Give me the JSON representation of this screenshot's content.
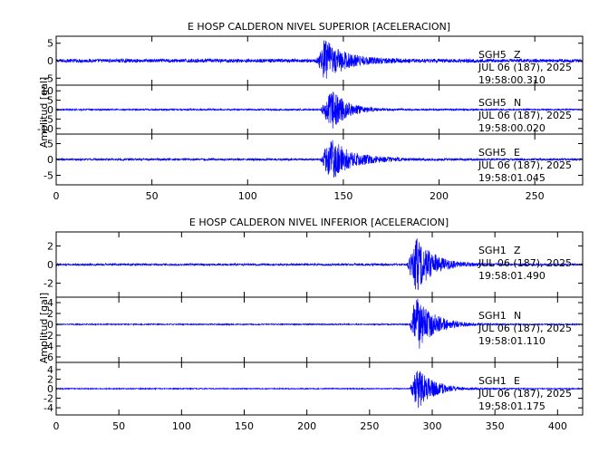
{
  "chart_data": [
    {
      "type": "line",
      "title": "E HOSP CALDERON NIVEL SUPERIOR [ACELERACION]",
      "ylabel": "Amplitud [gal]",
      "xlim": [
        0,
        275
      ],
      "xticks": [
        0,
        50,
        100,
        150,
        200,
        250
      ],
      "line_color": "#0000ff",
      "panels": [
        {
          "station": "SGH5",
          "component": "Z",
          "date": "JUL 06 (187), 2025",
          "time": "19:58:00.310",
          "ylim": [
            -7,
            7
          ],
          "yticks": [
            -5,
            0,
            5
          ],
          "noise_amplitude": 0.5,
          "event": {
            "onset": 136,
            "peak_time": 140,
            "peak_amplitude": 6.5,
            "coda_end": 175
          }
        },
        {
          "station": "SGH5",
          "component": "N",
          "date": "JUL 06 (187), 2025",
          "time": "19:58:00.020",
          "ylim": [
            -13,
            13
          ],
          "yticks": [
            -10,
            -5,
            0,
            5,
            10
          ],
          "noise_amplitude": 0.4,
          "event": {
            "onset": 138,
            "peak_time": 144,
            "peak_amplitude": 11,
            "coda_end": 170
          }
        },
        {
          "station": "SGH5",
          "component": "E",
          "date": "JUL 06 (187), 2025",
          "time": "19:58:01.045",
          "ylim": [
            -8,
            8
          ],
          "yticks": [
            -5,
            0,
            5
          ],
          "noise_amplitude": 0.3,
          "event": {
            "onset": 138,
            "peak_time": 143,
            "peak_amplitude": 7,
            "coda_end": 180
          }
        }
      ]
    },
    {
      "type": "line",
      "title": "E HOSP CALDERON NIVEL INFERIOR [ACELERACION]",
      "ylabel": "Amplitud [gal]",
      "xlim": [
        0,
        420
      ],
      "xticks": [
        0,
        50,
        100,
        150,
        200,
        250,
        300,
        350,
        400
      ],
      "line_color": "#0000ff",
      "panels": [
        {
          "station": "SGH1",
          "component": "Z",
          "date": "JUL 06 (187), 2025",
          "time": "19:58:01.490",
          "ylim": [
            -3.5,
            3.5
          ],
          "yticks": [
            -2,
            0,
            2
          ],
          "noise_amplitude": 0.1,
          "event": {
            "onset": 280,
            "peak_time": 287,
            "peak_amplitude": 3.2,
            "coda_end": 330
          }
        },
        {
          "station": "SGH1",
          "component": "N",
          "date": "JUL 06 (187), 2025",
          "time": "19:58:01.110",
          "ylim": [
            -7,
            5
          ],
          "yticks": [
            -6,
            -4,
            -2,
            0,
            2,
            4
          ],
          "noise_amplitude": 0.1,
          "event": {
            "onset": 282,
            "peak_time": 287,
            "peak_amplitude": 5.5,
            "coda_end": 330
          }
        },
        {
          "station": "SGH1",
          "component": "E",
          "date": "JUL 06 (187), 2025",
          "time": "19:58:01.175",
          "ylim": [
            -5.5,
            5.5
          ],
          "yticks": [
            -4,
            -2,
            0,
            2,
            4
          ],
          "noise_amplitude": 0.1,
          "event": {
            "onset": 282,
            "peak_time": 288,
            "peak_amplitude": 4.5,
            "coda_end": 330
          }
        }
      ]
    }
  ]
}
